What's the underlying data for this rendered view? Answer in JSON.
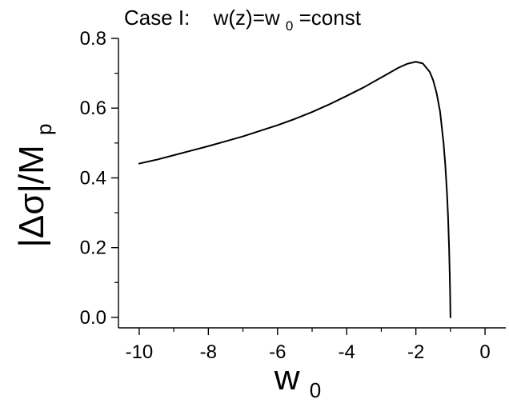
{
  "chart_data": {
    "type": "line",
    "title": {
      "prefix": "Case I:",
      "expr_main": "w(z)=w",
      "expr_sub": "0",
      "expr_tail": "=const"
    },
    "xlabel": {
      "main": "w",
      "sub": "0"
    },
    "ylabel": {
      "main": "|Δσ|/M",
      "sub": "p"
    },
    "xlim": [
      -10.6,
      0.6
    ],
    "ylim": [
      -0.03,
      0.8
    ],
    "xticks": [
      -10,
      -8,
      -6,
      -4,
      -2,
      0
    ],
    "xtick_labels": [
      "-10",
      "-8",
      "-6",
      "-4",
      "-2",
      "0"
    ],
    "yticks": [
      0.0,
      0.2,
      0.4,
      0.6,
      0.8
    ],
    "ytick_labels": [
      "0.0",
      "0.2",
      "0.4",
      "0.6",
      "0.8"
    ],
    "grid": false,
    "series": [
      {
        "color": "#000000",
        "x": [
          -10,
          -9.5,
          -9,
          -8.5,
          -8,
          -7.5,
          -7,
          -6.5,
          -6,
          -5.5,
          -5,
          -4.5,
          -4,
          -3.5,
          -3,
          -2.5,
          -2.25,
          -2.0,
          -1.8,
          -1.6,
          -1.5,
          -1.4,
          -1.3,
          -1.2,
          -1.15,
          -1.1,
          -1.07,
          -1.04,
          -1.02,
          -1.01,
          -1.0
        ],
        "y": [
          0.441,
          0.452,
          0.465,
          0.478,
          0.491,
          0.505,
          0.519,
          0.535,
          0.551,
          0.569,
          0.589,
          0.611,
          0.635,
          0.66,
          0.688,
          0.716,
          0.727,
          0.733,
          0.728,
          0.704,
          0.68,
          0.643,
          0.59,
          0.5,
          0.438,
          0.355,
          0.29,
          0.2,
          0.12,
          0.07,
          0.0
        ]
      }
    ]
  }
}
